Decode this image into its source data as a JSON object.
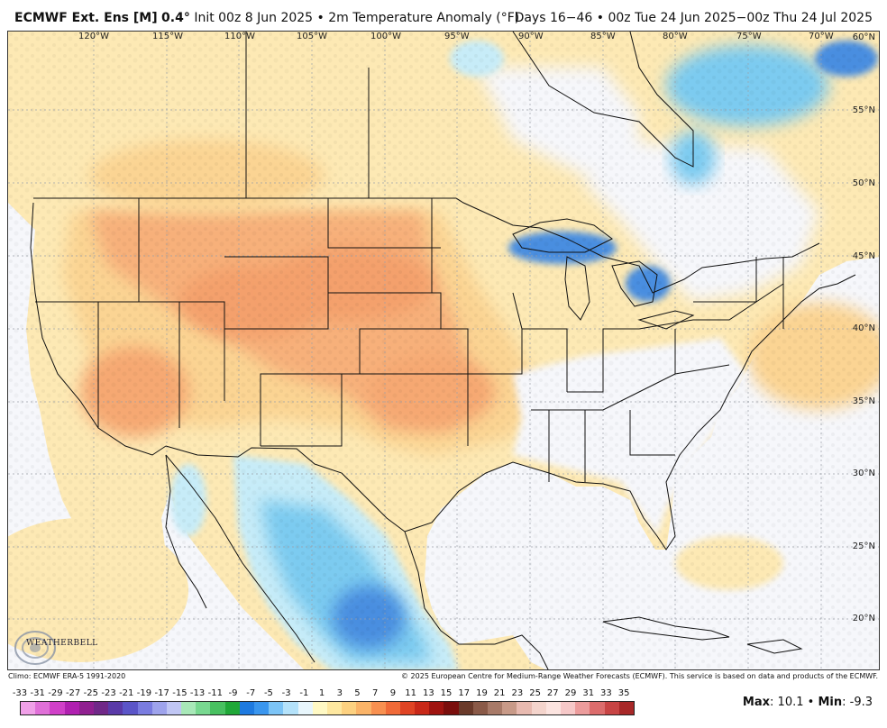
{
  "header": {
    "model": "ECMWF Ext. Ens [M]",
    "resolution": "0.4°",
    "init": "Init 00z 8 Jun 2025",
    "separator": "•",
    "field": "2m Temperature Anomaly (°F)",
    "valid": "Days 16−46 • 00z Tue 24 Jun 2025−00z Thu 24 Jul 2025"
  },
  "map": {
    "longitude_labels": [
      "120°W",
      "115°W",
      "110°W",
      "105°W",
      "100°W",
      "95°W",
      "90°W",
      "85°W",
      "80°W",
      "75°W",
      "70°W"
    ],
    "latitude_labels": [
      "60°N",
      "55°N",
      "50°N",
      "45°N",
      "40°N",
      "35°N",
      "30°N",
      "25°N",
      "20°N"
    ],
    "colors": {
      "ocean": "#f6f7fb",
      "warm_light": "#fdeeb0",
      "warm": "#fbd493",
      "warmer": "#f7b07a",
      "cold_light": "#c7ecf8",
      "cold": "#7ccbf0",
      "colder": "#4a8ee0",
      "border": "#111111"
    }
  },
  "logo": {
    "name": "WeatherBell",
    "text": "WEATHERBELL"
  },
  "credits": {
    "left": "Climo: ECMWF ERA-5 1991-2020",
    "right": "© 2025 European Centre for Medium-Range Weather Forecasts (ECMWF). This service is based on data and products of the ECMWF."
  },
  "scale": {
    "labels": [
      "-33",
      "-31",
      "-29",
      "-27",
      "-25",
      "-23",
      "-21",
      "-19",
      "-17",
      "-15",
      "-13",
      "-11",
      "-9",
      "-7",
      "-5",
      "-3",
      "-1",
      "1",
      "3",
      "5",
      "7",
      "9",
      "11",
      "13",
      "15",
      "17",
      "19",
      "21",
      "23",
      "25",
      "27",
      "29",
      "31",
      "33",
      "35"
    ],
    "colors": [
      "#f0a0e8",
      "#e070d8",
      "#d040c8",
      "#b020b0",
      "#902090",
      "#702888",
      "#5a3aa8",
      "#5b55c8",
      "#7a7ce0",
      "#9ea3ec",
      "#c0c6f4",
      "#a8e8b8",
      "#78d890",
      "#48c060",
      "#20a838",
      "#1e7ae0",
      "#3a96ee",
      "#7cc4f6",
      "#b4e2fa",
      "#e8f6fc",
      "#fff9c4",
      "#fee8a0",
      "#fdd180",
      "#fbb468",
      "#f89050",
      "#f06a38",
      "#e04424",
      "#c82818",
      "#a01410",
      "#7a0e0c",
      "#6a3a2a",
      "#8a5a48",
      "#a87a68",
      "#c89a88",
      "#e8bab0",
      "#f4d4cc",
      "#fce4e0",
      "#f6c8c8",
      "#ec9c9c",
      "#dc6c6c",
      "#c84444",
      "#a82828"
    ]
  },
  "stats": {
    "max_label": "Max",
    "max_value": "10.1",
    "sep": "•",
    "min_label": "Min",
    "min_value": "-9.3"
  }
}
